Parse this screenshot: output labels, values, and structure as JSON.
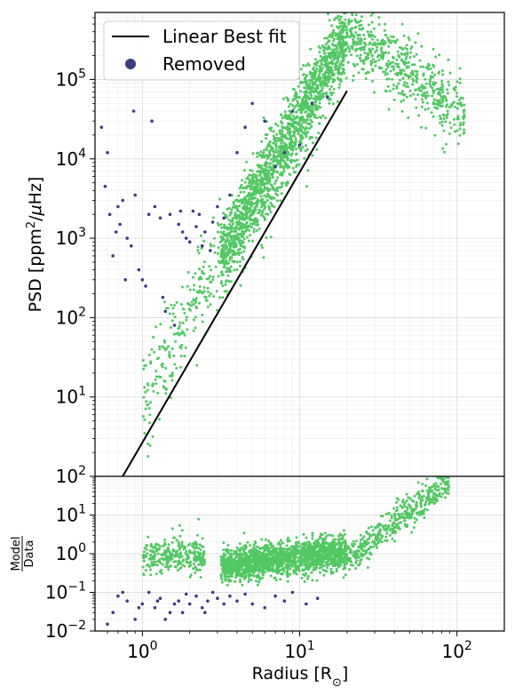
{
  "chart_data": [
    {
      "type": "scatter",
      "panel": "top",
      "x_scale": "log",
      "y_scale": "log",
      "xlim": [
        0.5,
        200
      ],
      "ylim": [
        1,
        700000
      ],
      "ylabel_parts": [
        "PSD [ppm",
        "2",
        "/",
        "μ",
        "Hz]"
      ],
      "grid": true,
      "legend_position": "top-left",
      "y_ticks": [
        {
          "value": 10,
          "mant": "10",
          "exp": "1"
        },
        {
          "value": 100,
          "mant": "10",
          "exp": "2"
        },
        {
          "value": 1000,
          "mant": "10",
          "exp": "3"
        },
        {
          "value": 10000,
          "mant": "10",
          "exp": "4"
        },
        {
          "value": 100000,
          "mant": "10",
          "exp": "5"
        }
      ],
      "series": [
        {
          "name": "Linear Best fit",
          "kind": "line",
          "color": "#000000",
          "x": [
            0.75,
            20
          ],
          "y": [
            1.0,
            72000
          ]
        },
        {
          "name": "Removed",
          "kind": "scatter",
          "color": "#3b3f7f",
          "x": [
            0.55,
            0.58,
            0.6,
            0.62,
            0.65,
            0.7,
            0.72,
            0.75,
            0.8,
            0.85,
            0.9,
            0.95,
            1.0,
            1.05,
            1.1,
            1.2,
            1.3,
            1.4,
            1.5,
            1.6,
            1.7,
            1.8,
            1.9,
            2.0,
            2.1,
            2.2,
            2.3,
            2.5,
            2.7,
            3.0,
            3.3,
            3.6,
            4.0,
            4.5,
            5.0,
            6.0,
            7.0,
            8.0,
            9.0,
            10.0,
            12.0,
            15.0,
            0.68,
            0.78,
            0.88,
            1.15,
            1.35,
            1.75,
            2.4,
            2.8
          ],
          "y": [
            25000,
            4500,
            12000,
            2000,
            600,
            2500,
            1500,
            3000,
            1000,
            800,
            3500,
            400,
            300,
            250,
            2000,
            2500,
            1800,
            120,
            2000,
            80,
            1500,
            1200,
            1000,
            900,
            2200,
            1400,
            2000,
            1200,
            700,
            2500,
            1800,
            3500,
            12000,
            25000,
            50000,
            30000,
            8000,
            12000,
            40000,
            15000,
            50000,
            60000,
            1200,
            300,
            40000,
            30000,
            180,
            2200,
            800,
            1600
          ]
        },
        {
          "name": "",
          "kind": "scatter",
          "color": "#52c763",
          "band": {
            "x_min": 1.0,
            "x_max": 120,
            "points": 2600
          }
        }
      ]
    },
    {
      "type": "scatter",
      "panel": "bottom",
      "x_scale": "log",
      "y_scale": "log",
      "xlim": [
        0.5,
        200
      ],
      "ylim": [
        0.01,
        100
      ],
      "xlabel_parts": [
        "Radius [R",
        "⊙",
        "]"
      ],
      "ylabel_num": "Model",
      "ylabel_den": "Data",
      "grid": true,
      "x_ticks": [
        {
          "value": 1,
          "mant": "10",
          "exp": "0"
        },
        {
          "value": 10,
          "mant": "10",
          "exp": "1"
        },
        {
          "value": 100,
          "mant": "10",
          "exp": "2"
        }
      ],
      "y_ticks": [
        {
          "value": 0.01,
          "mant": "10",
          "exp": "−2"
        },
        {
          "value": 0.1,
          "mant": "10",
          "exp": "−1"
        },
        {
          "value": 1,
          "mant": "10",
          "exp": "0"
        },
        {
          "value": 10,
          "mant": "10",
          "exp": "1"
        },
        {
          "value": 100,
          "mant": "10",
          "exp": "2"
        }
      ],
      "series": [
        {
          "name": "Removed",
          "kind": "scatter",
          "color": "#3b3f7f",
          "x": [
            0.6,
            0.7,
            0.8,
            0.9,
            1.0,
            1.1,
            1.2,
            1.3,
            1.4,
            1.5,
            1.6,
            1.7,
            1.8,
            2.0,
            2.2,
            2.4,
            2.6,
            2.8,
            3.0,
            3.3,
            3.6,
            4.0,
            4.5,
            5.0,
            6.0,
            7.0,
            8.0,
            9.0,
            11.0,
            13.0,
            0.65,
            0.75,
            0.95,
            1.25,
            1.9,
            2.5
          ],
          "y": [
            0.015,
            0.08,
            0.06,
            0.02,
            0.05,
            0.1,
            0.04,
            0.07,
            0.02,
            0.03,
            0.05,
            0.06,
            0.03,
            0.05,
            0.08,
            0.04,
            0.06,
            0.1,
            0.07,
            0.05,
            0.08,
            0.06,
            0.09,
            0.05,
            0.04,
            0.08,
            0.06,
            0.1,
            0.05,
            0.07,
            0.03,
            0.1,
            0.04,
            0.06,
            0.09,
            0.03
          ]
        },
        {
          "name": "",
          "kind": "scatter",
          "color": "#52c763",
          "band": {
            "x_min": 1.0,
            "x_max": 120,
            "points": 2400
          }
        }
      ]
    }
  ]
}
